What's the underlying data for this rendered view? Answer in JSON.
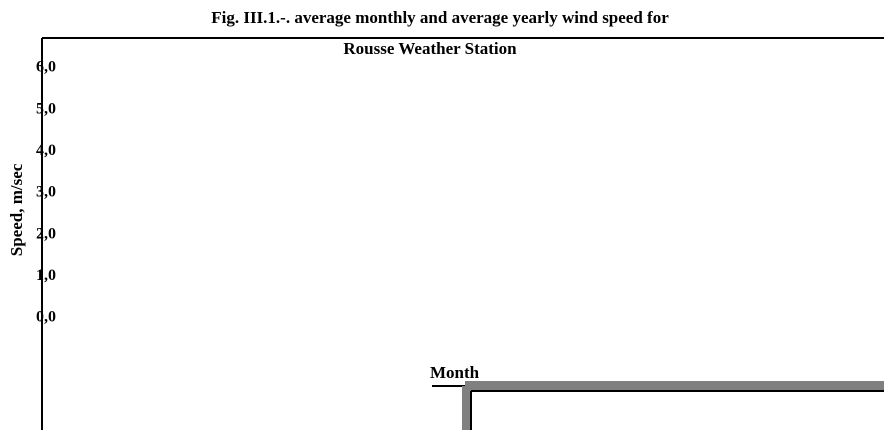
{
  "chart_data": {
    "type": "bar",
    "title": "Fig. III.1.-. average monthly and average yearly wind speed for",
    "subtitle": "Rousse Weather Station",
    "y_label": "Speed, m/sec",
    "x_label": "Month",
    "ylim": [
      0,
      6
    ],
    "yticks": [
      {
        "value": 0,
        "label": "0,0"
      },
      {
        "value": 1,
        "label": "1,0"
      },
      {
        "value": 2,
        "label": "2,0"
      },
      {
        "value": 3,
        "label": "3,0"
      },
      {
        "value": 4,
        "label": "4,0"
      },
      {
        "value": 5,
        "label": "5,0"
      },
      {
        "value": 6,
        "label": "6,0"
      }
    ]
  }
}
